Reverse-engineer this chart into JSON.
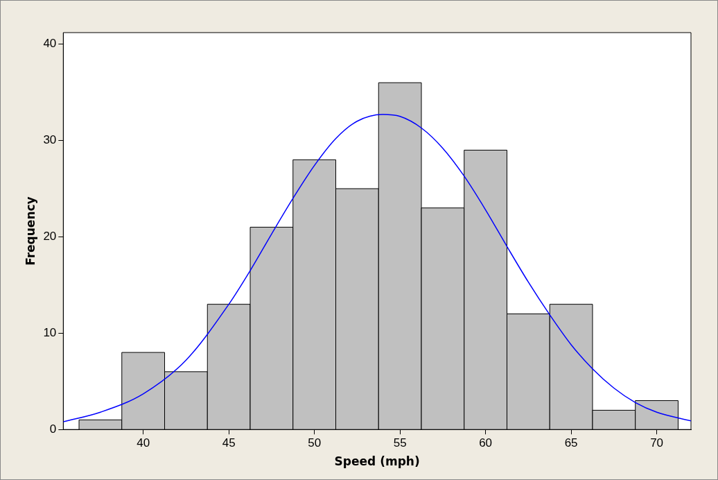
{
  "chart_data": {
    "type": "histogram",
    "xlabel": "Speed (mph)",
    "ylabel": "Frequency",
    "bins": [
      36.25,
      38.75,
      41.25,
      43.75,
      46.25,
      48.75,
      51.25,
      53.75,
      56.25,
      58.75,
      61.25,
      63.75,
      66.25,
      68.75,
      71.25
    ],
    "values": [
      1,
      8,
      6,
      13,
      21,
      28,
      25,
      36,
      23,
      29,
      12,
      13,
      2,
      3
    ],
    "color": "#c0c0c0",
    "series": [
      {
        "type": "line",
        "color": "#0000ff",
        "x": [
          35.33,
          37.5,
          40,
          42.5,
          45,
          46.25,
          47.5,
          48.75,
          50,
          51.25,
          52.5,
          54,
          55,
          56.25,
          57.5,
          58.75,
          60,
          61.25,
          62.5,
          63.75,
          65,
          66.25,
          67.5,
          68.75,
          70,
          72
        ],
        "values": [
          0.8,
          1.8,
          3.7,
          7.2,
          13,
          16.5,
          20.3,
          24,
          27.4,
          30.2,
          32,
          32.7,
          32.5,
          31.3,
          29.2,
          26.3,
          22.8,
          19,
          15.3,
          11.9,
          8.8,
          6.3,
          4.3,
          2.8,
          1.8,
          0.9
        ]
      }
    ],
    "xlim": [
      35.33,
      72
    ],
    "ylim": [
      0,
      41.2
    ],
    "xticks": [
      40,
      45,
      50,
      55,
      60,
      65,
      70
    ],
    "yticks": [
      0,
      10,
      20,
      30,
      40
    ],
    "grid": false,
    "legend": false,
    "marker": "none"
  }
}
